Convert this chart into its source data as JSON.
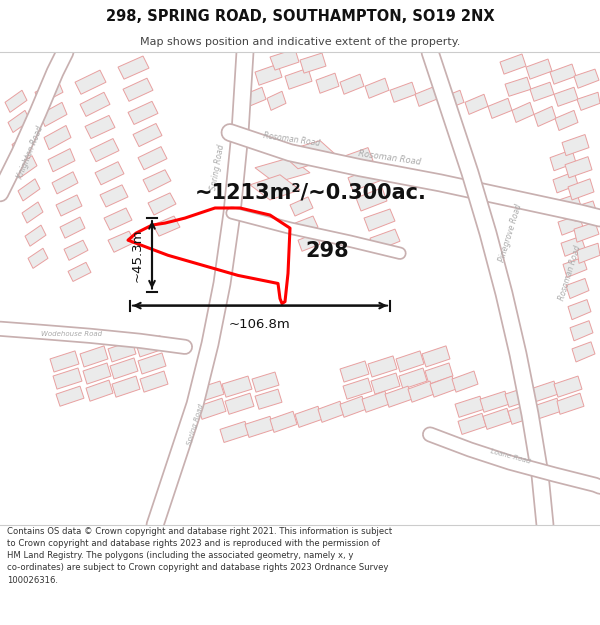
{
  "title": "298, SPRING ROAD, SOUTHAMPTON, SO19 2NX",
  "subtitle": "Map shows position and indicative extent of the property.",
  "footer": "Contains OS data © Crown copyright and database right 2021. This information is subject\nto Crown copyright and database rights 2023 and is reproduced with the permission of\nHM Land Registry. The polygons (including the associated geometry, namely x, y\nco-ordinates) are subject to Crown copyright and database rights 2023 Ordnance Survey\n100026316.",
  "area_label": "~1213m²/~0.300ac.",
  "width_label": "~106.8m",
  "height_label": "~45.3m",
  "property_label": "298",
  "building_fill": "#ebebeb",
  "building_edge": "#e8a0a0",
  "property_color": "#ff0000",
  "ann_color": "#111111",
  "road_label_color": "#aaaaaa",
  "footer_color": "#333333",
  "title_color": "#111111"
}
